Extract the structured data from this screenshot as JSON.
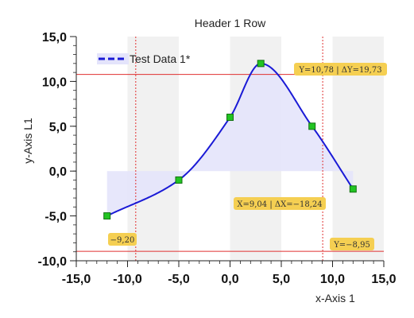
{
  "colors": {
    "band": "#f1f1f1",
    "fill": "#e4e4fb",
    "curve": "#1a1ad6",
    "point_fill": "#22c422",
    "point_stroke": "#137013",
    "cursor": "#e03030",
    "badge_fill": "#f5cf52",
    "axis": "#222222",
    "grid_minor": "#000000"
  },
  "chart_data": {
    "type": "line",
    "title": "Header 1 Row",
    "xlabel": "x-Axis 1",
    "ylabel": "y-Axis L1",
    "xlim": [
      -15,
      15
    ],
    "ylim": [
      -10,
      15
    ],
    "xticks": [
      "-15,0",
      "-10,0",
      "-5,0",
      "0,0",
      "5,0",
      "10,0",
      "15,0"
    ],
    "yticks": [
      "-10,0",
      "-5,0",
      "0,0",
      "5,0",
      "10,0",
      "15,0"
    ],
    "xtick_values": [
      -15,
      -10,
      -5,
      0,
      5,
      10,
      15
    ],
    "ytick_values": [
      -10,
      -5,
      0,
      5,
      10,
      15
    ],
    "grid": false,
    "legend": "top-left",
    "series": [
      {
        "name": "Test Data 1*",
        "x": [
          -12,
          -5,
          0,
          3,
          8,
          12
        ],
        "y": [
          -5,
          -1,
          6,
          12,
          5,
          -2
        ],
        "smooth": true,
        "filled_to_zero": true
      }
    ],
    "cursors": {
      "vertical_x": [
        -9.2,
        9.04
      ],
      "horizontal_y": [
        10.78,
        -8.95
      ]
    },
    "annotations": [
      "Y=10,78 | ΔY=19,73",
      "X=9,04 | ΔX=−18,24",
      "−9,20",
      "Y=−8,95"
    ]
  }
}
